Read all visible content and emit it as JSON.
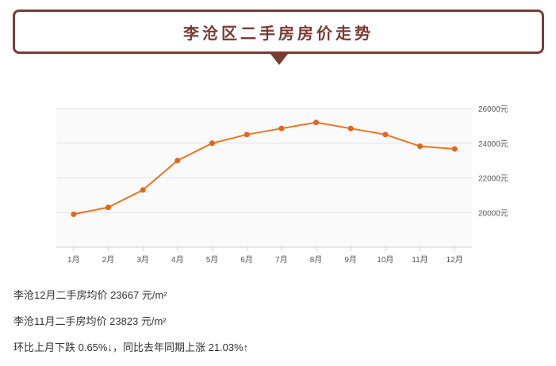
{
  "title": "李沧区二手房房价走势",
  "chart_data": {
    "type": "line",
    "title": "",
    "xlabel": "",
    "ylabel": "",
    "categories": [
      "1月",
      "2月",
      "3月",
      "4月",
      "5月",
      "6月",
      "7月",
      "8月",
      "9月",
      "10月",
      "11月",
      "12月"
    ],
    "values": [
      19900,
      20300,
      21300,
      23000,
      24000,
      24500,
      24850,
      25200,
      24850,
      24500,
      23823,
      23667
    ],
    "ylim": [
      18000,
      26000
    ],
    "yticks": [
      20000,
      22000,
      24000,
      26000
    ],
    "ytick_labels": [
      "20000元",
      "22000元",
      "24000元",
      "26000元"
    ],
    "y_axis_side": "right",
    "grid": true,
    "line_color": "#f0731e",
    "marker_color": "#e8641a",
    "grid_color": "#e3e3e3",
    "legend": "none"
  },
  "stats": {
    "line1": "李沧12月二手房均价 23667 元/m²",
    "line2": "李沧11月二手房均价 23823 元/m²",
    "line3": "环比上月下跌 0.65%↓，同比去年同期上涨 21.03%↑"
  },
  "colors": {
    "title_border": "#7a3b33",
    "title_text": "#7a3b33"
  }
}
